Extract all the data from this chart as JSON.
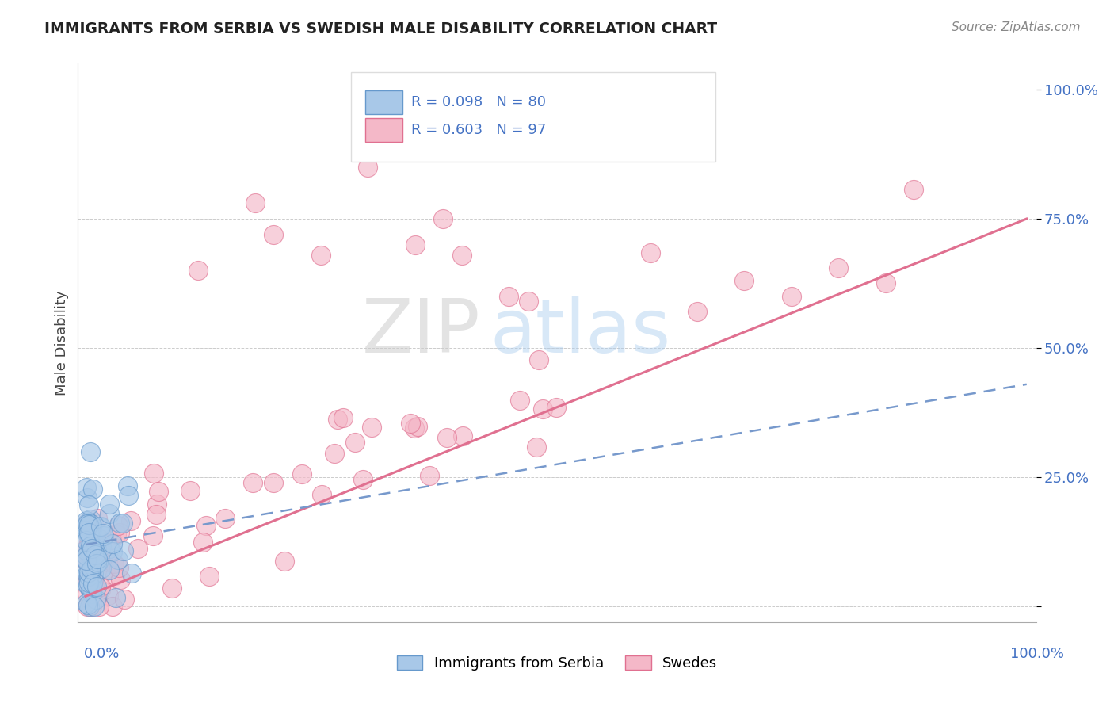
{
  "title": "IMMIGRANTS FROM SERBIA VS SWEDISH MALE DISABILITY CORRELATION CHART",
  "source": "Source: ZipAtlas.com",
  "ylabel": "Male Disability",
  "ytick_labels": [
    "",
    "25.0%",
    "50.0%",
    "75.0%",
    "100.0%"
  ],
  "ytick_values": [
    0.0,
    0.25,
    0.5,
    0.75,
    1.0
  ],
  "series1_name": "Immigrants from Serbia",
  "series1_color": "#a8c8e8",
  "series1_edge": "#6699cc",
  "series1_R": 0.098,
  "series1_N": 80,
  "series1_trend_color": "#7799cc",
  "series2_name": "Swedes",
  "series2_color": "#f4b8c8",
  "series2_edge": "#e07090",
  "series2_R": 0.603,
  "series2_N": 97,
  "series2_trend_color": "#e07090",
  "bg_color": "#ffffff",
  "grid_color": "#cccccc",
  "title_color": "#222222",
  "axis_label_color": "#4472c4",
  "ylabel_color": "#444444",
  "watermark_zip": "ZIP",
  "watermark_atlas": "atlas",
  "source_color": "#888888",
  "fig_width": 14.06,
  "fig_height": 8.92,
  "dpi": 100
}
